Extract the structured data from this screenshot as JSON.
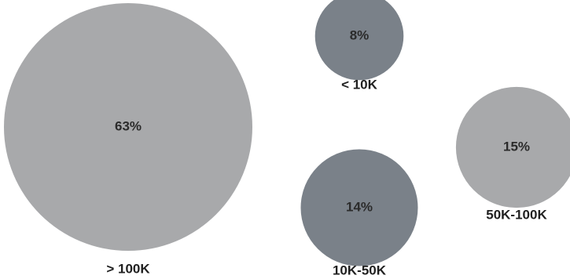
{
  "chart_data": {
    "type": "bubble",
    "title": "",
    "series": [
      {
        "points": [
          {
            "category": "> 100K",
            "value": 63,
            "value_label": "63%",
            "color": "#a8a9ab"
          },
          {
            "category": "< 10K",
            "value": 8,
            "value_label": "8%",
            "color": "#7a8189"
          },
          {
            "category": "50K-100K",
            "value": 15,
            "value_label": "15%",
            "color": "#a8a9ab"
          },
          {
            "category": "10K-50K",
            "value": 14,
            "value_label": "14%",
            "color": "#7a8189"
          }
        ]
      }
    ],
    "unit": "%"
  }
}
